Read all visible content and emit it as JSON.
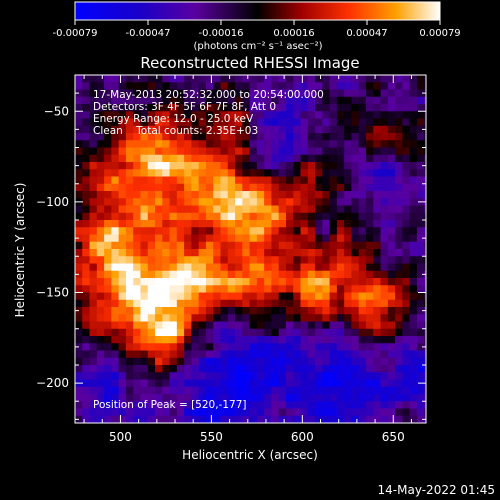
{
  "chart_data": {
    "type": "heatmap",
    "title": "Reconstructed RHESSI Image",
    "xlabel": "Heliocentric X (arcsec)",
    "ylabel": "Heliocentric Y (arcsec)",
    "xlim": [
      475,
      668
    ],
    "ylim": [
      -222,
      -30
    ],
    "x_ticks": [
      500,
      550,
      600,
      650
    ],
    "y_ticks": [
      -50,
      -100,
      -150,
      -200
    ],
    "colorbar": {
      "ticks": [
        "-0.00079",
        "-0.00047",
        "-0.00016",
        "0.00016",
        "0.00047",
        "0.00079"
      ],
      "unit_label": "(photons cm⁻² s⁻¹ asec⁻²)",
      "range": [
        -0.00079,
        0.00079
      ]
    },
    "annotations": {
      "time_range": "17-May-2013 20:52:32.000 to 20:54:00.000",
      "detectors": "Detectors: 3F 4F 5F 6F 7F 8F, Att 0",
      "energy": "Energy Range: 12.0 - 25.0 keV",
      "method": "Clean    Total counts: 2.35E+03",
      "peak": "Position of Peak = [520,-177]"
    },
    "peak_position": [
      520,
      -177
    ],
    "bright_regions": [
      {
        "x": 500,
        "y": -95,
        "level": 0.7,
        "sigma": 22
      },
      {
        "x": 525,
        "y": -72,
        "level": 0.8,
        "sigma": 15
      },
      {
        "x": 555,
        "y": -95,
        "level": 0.85,
        "sigma": 15
      },
      {
        "x": 580,
        "y": -110,
        "level": 0.75,
        "sigma": 14
      },
      {
        "x": 610,
        "y": -90,
        "level": 0.45,
        "sigma": 12
      },
      {
        "x": 500,
        "y": -140,
        "level": 0.95,
        "sigma": 20
      },
      {
        "x": 525,
        "y": -170,
        "level": 1.0,
        "sigma": 15
      },
      {
        "x": 540,
        "y": -140,
        "level": 0.8,
        "sigma": 14
      },
      {
        "x": 575,
        "y": -145,
        "level": 0.8,
        "sigma": 14
      },
      {
        "x": 610,
        "y": -145,
        "level": 0.75,
        "sigma": 12
      },
      {
        "x": 640,
        "y": -160,
        "level": 0.8,
        "sigma": 12
      },
      {
        "x": 650,
        "y": -60,
        "level": 0.35,
        "sigma": 10
      },
      {
        "x": 560,
        "y": -55,
        "level": 0.45,
        "sigma": 10
      },
      {
        "x": 630,
        "y": -125,
        "level": 0.45,
        "sigma": 10
      }
    ],
    "negative_regions": [
      {
        "x": 560,
        "y": -200,
        "level": -0.7,
        "sigma": 22
      },
      {
        "x": 620,
        "y": -205,
        "level": -0.6,
        "sigma": 18
      },
      {
        "x": 640,
        "y": -95,
        "level": -0.35,
        "sigma": 16
      },
      {
        "x": 590,
        "y": -60,
        "level": -0.3,
        "sigma": 14
      },
      {
        "x": 490,
        "y": -205,
        "level": -0.35,
        "sigma": 14
      },
      {
        "x": 660,
        "y": -195,
        "level": -0.4,
        "sigma": 12
      }
    ]
  },
  "footer": {
    "date": "14-May-2022 01:45"
  }
}
